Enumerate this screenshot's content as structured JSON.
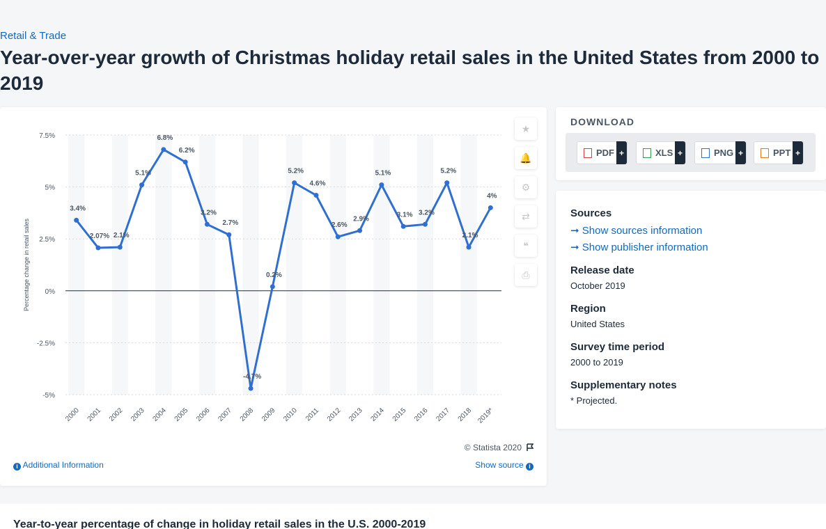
{
  "breadcrumb": "Retail & Trade",
  "title": "Year-over-year growth of Christmas holiday retail sales in the United States from 2000 to 2019",
  "chart_data": {
    "type": "line",
    "x": [
      "2000",
      "2001",
      "2002",
      "2003",
      "2004",
      "2005",
      "2006",
      "2007",
      "2008",
      "2009",
      "2010",
      "2011",
      "2012",
      "2013",
      "2014",
      "2015",
      "2016",
      "2017",
      "2018",
      "2019*"
    ],
    "values": [
      3.4,
      2.07,
      2.1,
      5.1,
      6.8,
      6.2,
      3.2,
      2.7,
      -4.7,
      0.2,
      5.2,
      4.6,
      2.6,
      2.9,
      5.1,
      3.1,
      3.2,
      5.2,
      2.1,
      4
    ],
    "data_labels": [
      "3.4%",
      "2.07%",
      "2.1%",
      "5.1%",
      "6.8%",
      "6.2%",
      "3.2%",
      "2.7%",
      "-4.7%",
      "0.2%",
      "5.2%",
      "4.6%",
      "2.6%",
      "2.9%",
      "5.1%",
      "3.1%",
      "3.2%",
      "5.2%",
      "2.1%",
      "4%"
    ],
    "ylabel": "Percentage change in retail sales",
    "ylim": [
      -5,
      7.5
    ],
    "yticks": [
      -5,
      -2.5,
      0,
      2.5,
      5,
      7.5
    ],
    "ytick_labels": [
      "-5%",
      "-2.5%",
      "0%",
      "2.5%",
      "5%",
      "7.5%"
    ],
    "line_color": "#2f6fd1",
    "grid": true
  },
  "tools": [
    {
      "name": "favorite-star-icon",
      "glyph": "★"
    },
    {
      "name": "notification-bell-icon",
      "glyph": "🔔"
    },
    {
      "name": "settings-gear-icon",
      "glyph": "⚙"
    },
    {
      "name": "share-icon",
      "glyph": "⇄"
    },
    {
      "name": "cite-quote-icon",
      "glyph": "❝"
    },
    {
      "name": "print-icon",
      "glyph": "⎙"
    }
  ],
  "copyright": "© Statista 2020",
  "additional_info": "Additional Information",
  "show_source": "Show source",
  "download": {
    "title": "DOWNLOAD",
    "buttons": [
      "PDF",
      "XLS",
      "PNG",
      "PPT"
    ],
    "plus": "+"
  },
  "meta": {
    "sources_h": "Sources",
    "show_sources": "Show sources information",
    "show_publisher": "Show publisher information",
    "release_h": "Release date",
    "release_v": "October 2019",
    "region_h": "Region",
    "region_v": "United States",
    "period_h": "Survey time period",
    "period_v": "2000 to 2019",
    "notes_h": "Supplementary notes",
    "notes_v": "* Projected."
  },
  "bottom_title": "Year-to-year percentage of change in holiday retail sales in the U.S. 2000-2019"
}
